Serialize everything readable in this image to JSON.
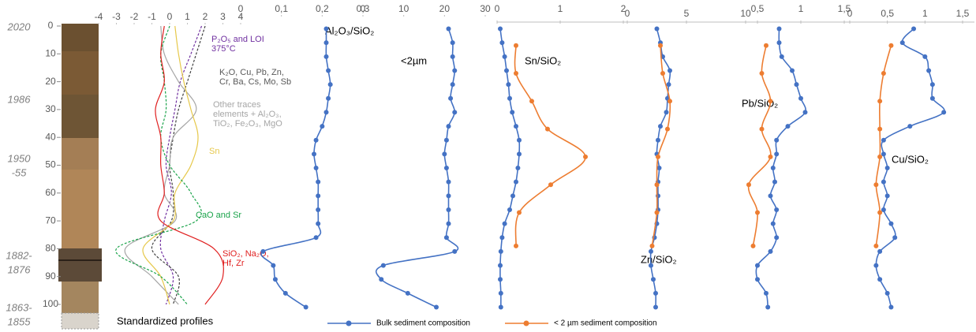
{
  "date_labels": [
    [
      "2020"
    ],
    [
      "1986"
    ],
    [
      "1950",
      "-55"
    ],
    [
      "1882-",
      "1876"
    ],
    [
      "1863-",
      "1855"
    ]
  ],
  "depth_axis": {
    "ylim": [
      0,
      100
    ],
    "yticks": [
      0,
      10,
      20,
      30,
      40,
      50,
      60,
      70,
      80,
      90,
      100
    ]
  },
  "chart_data": [
    {
      "type": "line",
      "title": "Standardized profiles",
      "xlim": [
        -4,
        4
      ],
      "xticks": [
        -4,
        -3,
        -2,
        -1,
        0,
        1,
        2,
        3,
        4
      ],
      "annotations": [
        {
          "lines": [
            "P₂O₅ and LOI",
            "375°C"
          ],
          "color": "#7030a0"
        },
        {
          "lines": [
            "K₂O, Cu, Pb, Zn,",
            "Cr, Ba, Cs, Mo, Sb"
          ],
          "color": "#595959"
        },
        {
          "lines": [
            "Other traces",
            "elements + Al₂O₃,",
            "TiO₂, Fe₂O₃, MgO"
          ],
          "color": "#a6a6a6"
        },
        {
          "lines": [
            "Sn"
          ],
          "color": "#e6c84a"
        },
        {
          "lines": [
            "CaO and Sr"
          ],
          "color": "#1aa34a"
        },
        {
          "lines": [
            "SiO₂, Na₂O,",
            "Hf, Zr"
          ],
          "color": "#e02020"
        }
      ],
      "series": [
        {
          "color": "#7030a0",
          "dashed": true,
          "markers": false,
          "depths": [
            0,
            10,
            20,
            30,
            40,
            50,
            60,
            70,
            80,
            90,
            100
          ],
          "values": [
            1.8,
            1.2,
            0.6,
            0.3,
            0,
            -0.2,
            0.1,
            -0.3,
            -0.5,
            0.2,
            -0.2
          ]
        },
        {
          "color": "#404040",
          "dashed": true,
          "markers": false,
          "depths": [
            0,
            10,
            20,
            30,
            40,
            50,
            60,
            70,
            80,
            90,
            100
          ],
          "values": [
            2.0,
            1.5,
            1.0,
            0.5,
            0.2,
            0,
            0.2,
            0.1,
            -1,
            0.5,
            0.2
          ]
        },
        {
          "color": "#a6a6a6",
          "dashed": false,
          "markers": false,
          "depths": [
            0,
            10,
            20,
            30,
            40,
            50,
            60,
            70,
            80,
            90,
            100
          ],
          "values": [
            -0.5,
            -0.3,
            0.5,
            1.5,
            0.2,
            0,
            -0.3,
            0.3,
            -2.5,
            -1,
            0.5
          ]
        },
        {
          "color": "#e6c84a",
          "dashed": false,
          "markers": false,
          "depths": [
            0,
            10,
            20,
            30,
            40,
            50,
            60,
            70,
            80,
            90,
            100
          ],
          "values": [
            0.3,
            0.5,
            0.8,
            1.2,
            1.6,
            1.2,
            0.3,
            0.2,
            -1.5,
            -0.5,
            0
          ]
        },
        {
          "color": "#1aa34a",
          "dashed": true,
          "markers": false,
          "depths": [
            0,
            10,
            20,
            30,
            40,
            50,
            60,
            70,
            80,
            90,
            100
          ],
          "values": [
            0,
            -0.5,
            -0.3,
            -0.2,
            -0.5,
            0,
            1.2,
            1.5,
            -3,
            -0.5,
            1
          ]
        },
        {
          "color": "#e02020",
          "dashed": false,
          "markers": false,
          "depths": [
            0,
            10,
            20,
            30,
            40,
            50,
            60,
            70,
            80,
            90,
            100
          ],
          "values": [
            -0.3,
            -0.5,
            -0.3,
            -0.8,
            -0.5,
            -0.5,
            -0.3,
            -0.5,
            2.5,
            3.0,
            2
          ]
        }
      ]
    },
    {
      "type": "line",
      "title": "Al₂O₃/SiO₂",
      "xlim": [
        0,
        0.3
      ],
      "xticks": [
        0,
        {
          "value": 0.1,
          "label": "0,1"
        },
        {
          "value": 0.2,
          "label": "0,2"
        },
        {
          "value": 0.3,
          "label": "0,3"
        }
      ],
      "series": [
        {
          "name": "Bulk sediment composition",
          "color": "#4472c4",
          "dashed": false,
          "markers": true,
          "depths": [
            1,
            6,
            11,
            16,
            21,
            26,
            31,
            36,
            41,
            46,
            51,
            56,
            61,
            66,
            71,
            76,
            81,
            86,
            91,
            96,
            101
          ],
          "values": [
            0.21,
            0.21,
            0.21,
            0.215,
            0.22,
            0.215,
            0.21,
            0.2,
            0.185,
            0.18,
            0.185,
            0.19,
            0.19,
            0.19,
            0.19,
            0.185,
            0.055,
            0.08,
            0.085,
            0.11,
            0.16
          ]
        }
      ]
    },
    {
      "type": "line",
      "title": "<2µm",
      "xlim": [
        0,
        30
      ],
      "xticks": [
        0,
        10,
        20,
        30
      ],
      "series": [
        {
          "color": "#4472c4",
          "dashed": false,
          "markers": true,
          "depths": [
            1,
            6,
            11,
            16,
            21,
            26,
            31,
            36,
            41,
            46,
            51,
            56,
            61,
            66,
            71,
            76,
            81,
            86,
            91,
            96,
            101
          ],
          "values": [
            21,
            22,
            22,
            22.5,
            22,
            21.5,
            22.5,
            21,
            20.5,
            20,
            20.5,
            21,
            21,
            21,
            21,
            20.5,
            22.5,
            5,
            4.5,
            11,
            18
          ]
        }
      ]
    },
    {
      "type": "line",
      "title": "Sn/SiO₂",
      "xlim": [
        0,
        2
      ],
      "xticks": [
        0,
        1,
        2
      ],
      "series": [
        {
          "color": "#4472c4",
          "dashed": false,
          "markers": true,
          "depths": [
            1,
            6,
            11,
            16,
            21,
            26,
            31,
            36,
            41,
            46,
            51,
            56,
            61,
            66,
            71,
            76,
            81,
            86,
            91,
            96,
            101
          ],
          "values": [
            0.05,
            0.08,
            0.12,
            0.15,
            0.18,
            0.2,
            0.24,
            0.3,
            0.35,
            0.35,
            0.33,
            0.3,
            0.25,
            0.2,
            0.12,
            0.08,
            0.06,
            0.05,
            0.05,
            0.06,
            0.06
          ]
        },
        {
          "name": "< 2 µm sediment composition",
          "color": "#ed7d31",
          "dashed": false,
          "markers": true,
          "depths": [
            7,
            17,
            27,
            37,
            47,
            57,
            67,
            79
          ],
          "values": [
            0.3,
            0.3,
            0.55,
            0.8,
            1.4,
            0.85,
            0.35,
            0.3
          ]
        }
      ]
    },
    {
      "type": "line",
      "title": "Zn/SiO₂",
      "xlim": [
        0,
        10
      ],
      "xticks": [
        0,
        5,
        10
      ],
      "series": [
        {
          "color": "#4472c4",
          "dashed": false,
          "markers": true,
          "depths": [
            1,
            6,
            11,
            16,
            21,
            26,
            31,
            36,
            41,
            46,
            51,
            56,
            61,
            66,
            71,
            76,
            81,
            86,
            91,
            96,
            101
          ],
          "values": [
            2.5,
            2.8,
            3,
            3.6,
            3.5,
            3.4,
            3.3,
            2.8,
            2.6,
            2.5,
            2.7,
            2.6,
            2.6,
            2.6,
            2.5,
            2.3,
            2,
            2,
            2.2,
            2.4,
            2.4
          ]
        },
        {
          "color": "#ed7d31",
          "dashed": false,
          "markers": true,
          "depths": [
            7,
            17,
            27,
            37,
            47,
            57,
            67,
            79
          ],
          "values": [
            2.8,
            3,
            3.6,
            3.4,
            2.6,
            2.5,
            2.5,
            2.1
          ]
        }
      ]
    },
    {
      "type": "line",
      "title": "Pb/SiO₂",
      "xlim": [
        0,
        1.5
      ],
      "xticks": [
        {
          "value": 0.5,
          "label": "0,5"
        },
        1,
        {
          "value": 1.5,
          "label": "1,5"
        }
      ],
      "series": [
        {
          "color": "#4472c4",
          "dashed": false,
          "markers": true,
          "depths": [
            1,
            6,
            11,
            16,
            21,
            26,
            31,
            36,
            41,
            46,
            51,
            56,
            61,
            66,
            71,
            76,
            81,
            86,
            91,
            96,
            101
          ],
          "values": [
            0.75,
            0.75,
            0.78,
            0.9,
            0.95,
            1.0,
            1.05,
            0.85,
            0.72,
            0.72,
            0.68,
            0.7,
            0.65,
            0.72,
            0.68,
            0.72,
            0.65,
            0.5,
            0.5,
            0.6,
            0.62
          ]
        },
        {
          "color": "#ed7d31",
          "dashed": false,
          "markers": true,
          "depths": [
            7,
            17,
            27,
            37,
            47,
            57,
            67,
            79
          ],
          "values": [
            0.6,
            0.55,
            0.65,
            0.55,
            0.65,
            0.4,
            0.5,
            0.45
          ]
        }
      ]
    },
    {
      "type": "line",
      "title": "Cu/SiO₂",
      "xlim": [
        0,
        1.5
      ],
      "xticks": [
        0,
        {
          "value": 0.5,
          "label": "0,5"
        },
        1,
        {
          "value": 1.5,
          "label": "1,5"
        }
      ],
      "series": [
        {
          "color": "#4472c4",
          "dashed": false,
          "markers": true,
          "depths": [
            1,
            6,
            11,
            16,
            21,
            26,
            31,
            36,
            41,
            46,
            51,
            56,
            61,
            66,
            71,
            76,
            81,
            86,
            91,
            96,
            101
          ],
          "values": [
            0.85,
            0.7,
            1.0,
            1.05,
            1.1,
            1.1,
            1.25,
            0.8,
            0.45,
            0.45,
            0.5,
            0.45,
            0.5,
            0.45,
            0.55,
            0.6,
            0.4,
            0.35,
            0.4,
            0.5,
            0.55
          ]
        },
        {
          "color": "#ed7d31",
          "dashed": false,
          "markers": true,
          "depths": [
            7,
            17,
            27,
            37,
            47,
            57,
            67,
            79
          ],
          "values": [
            0.55,
            0.45,
            0.4,
            0.4,
            0.4,
            0.35,
            0.4,
            0.35
          ]
        }
      ]
    }
  ]
}
